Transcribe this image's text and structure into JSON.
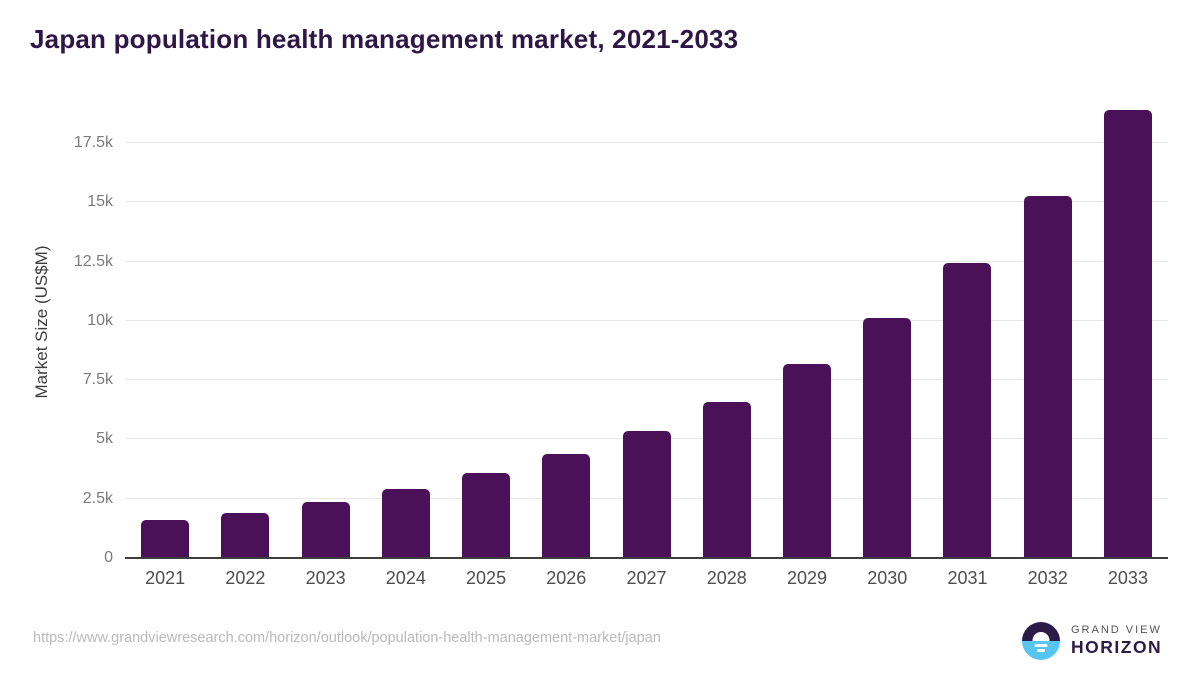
{
  "title": "Japan population health management market, 2021-2033",
  "footer": {
    "source_url": "https://www.grandviewresearch.com/horizon/outlook/population-health-management-market/japan",
    "logo": {
      "top": "GRAND VIEW",
      "bottom": "HORIZON"
    }
  },
  "colors": {
    "bar": "#4a1158",
    "title": "#2e1747",
    "axis_line": "#3d3d3d",
    "gridline": "#e7e7e7",
    "y_tick_label": "#7a7a7a",
    "x_tick_label": "#4e4e4e",
    "source_url": "#b9b9b9",
    "logo_dark": "#2d1b47",
    "logo_blue": "#56c5f2"
  },
  "chart_data": {
    "type": "bar",
    "title": "Japan population health management market, 2021-2033",
    "categories": [
      "2021",
      "2022",
      "2023",
      "2024",
      "2025",
      "2026",
      "2027",
      "2028",
      "2029",
      "2030",
      "2031",
      "2032",
      "2033"
    ],
    "values": [
      1600,
      1900,
      2350,
      2900,
      3580,
      4390,
      5360,
      6580,
      8180,
      10120,
      12440,
      15260,
      18890
    ],
    "xlabel": "",
    "ylabel": "Market Size (US$M)",
    "ylim": [
      0,
      19000
    ],
    "yticks": [
      0,
      2500,
      5000,
      7500,
      10000,
      12500,
      15000,
      17500
    ],
    "ytick_labels": [
      "0",
      "2.5k",
      "5k",
      "7.5k",
      "10k",
      "12.5k",
      "15k",
      "17.5k"
    ],
    "grid": true,
    "legend": false,
    "bar_color": "#4a1158"
  }
}
